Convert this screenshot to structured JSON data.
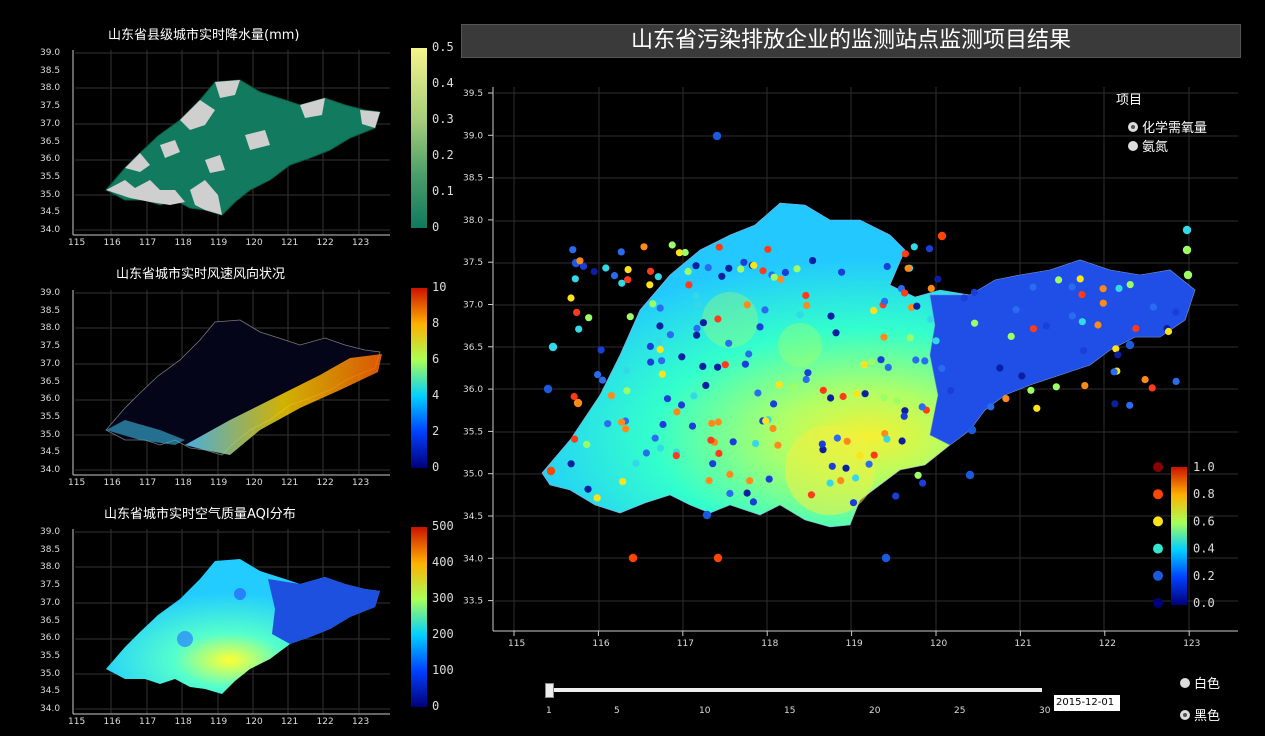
{
  "main_title": "山东省污染排放企业的监测站点监测项目结果",
  "panels": [
    {
      "title": "山东省县级城市实时降水量(mm)",
      "colorbar": [
        "0.5",
        "0.4",
        "0.3",
        "0.2",
        "0.1",
        "0"
      ]
    },
    {
      "title": "山东省城市实时风速风向状况",
      "colorbar": [
        "10",
        "8",
        "6",
        "4",
        "2",
        "0"
      ]
    },
    {
      "title": "山东省城市实时空气质量AQI分布",
      "colorbar": [
        "500",
        "400",
        "300",
        "200",
        "100",
        "0"
      ]
    }
  ],
  "small_x_ticks": [
    "115",
    "116",
    "117",
    "118",
    "119",
    "120",
    "121",
    "122",
    "123"
  ],
  "small_y_ticks": [
    "39.0",
    "38.5",
    "38.0",
    "37.5",
    "37.0",
    "36.5",
    "36.0",
    "35.5",
    "35.0",
    "34.5",
    "34.0"
  ],
  "main_x_ticks": [
    "115",
    "116",
    "117",
    "118",
    "119",
    "120",
    "121",
    "122",
    "123"
  ],
  "main_y_ticks": [
    "39.5",
    "39.0",
    "38.5",
    "38.0",
    "37.5",
    "37.0",
    "36.5",
    "36.0",
    "35.5",
    "35.0",
    "34.5",
    "34.0",
    "33.5"
  ],
  "legend": {
    "title": "项目",
    "items": [
      "化学需氧量",
      "氨氮"
    ]
  },
  "main_colorbar": [
    "1.0",
    "0.8",
    "0.6",
    "0.4",
    "0.2",
    "0.0"
  ],
  "main_colorbar_dot_colors": [
    "#8b0000",
    "#ff4500",
    "#ffe31a",
    "#33e6d0",
    "#1a5adf",
    "#00007a"
  ],
  "slider": {
    "ticks": [
      "1",
      "5",
      "10",
      "15",
      "20",
      "25",
      "30"
    ],
    "date": "2015-12-01",
    "value": 1,
    "min": 1,
    "max": 30
  },
  "theme": {
    "options": [
      "白色",
      "黑色"
    ],
    "selected": "黑色"
  },
  "colors": {
    "precip_fill": "#127a5e",
    "precip_gray": "#cfcfcf",
    "accent_bg": "#000000"
  }
}
